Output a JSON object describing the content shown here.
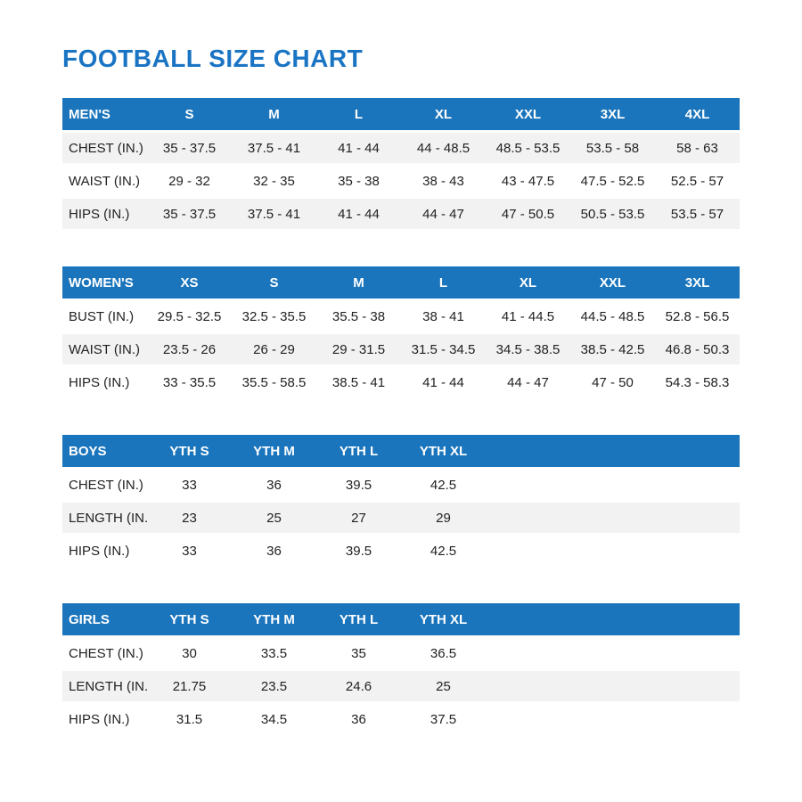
{
  "page": {
    "title": "FOOTBALL SIZE CHART"
  },
  "colors": {
    "title_blue": "#1a74c4",
    "header_blue": "#1b75bc",
    "stripe_gray": "#f2f2f3",
    "body_text": "#222222"
  },
  "tables": [
    {
      "id": "mens",
      "name": "mens-size-table",
      "header": [
        "MEN'S",
        "S",
        "M",
        "L",
        "XL",
        "XXL",
        "3XL",
        "4XL"
      ],
      "rows": [
        [
          "CHEST (IN.)",
          "35 - 37.5",
          "37.5 - 41",
          "41 - 44",
          "44 - 48.5",
          "48.5 - 53.5",
          "53.5 - 58",
          "58 - 63"
        ],
        [
          "WAIST (IN.)",
          "29 - 32",
          "32 - 35",
          "35 - 38",
          "38 - 43",
          "43 - 47.5",
          "47.5 - 52.5",
          "52.5 - 57"
        ],
        [
          "HIPS (IN.)",
          "35 - 37.5",
          "37.5 - 41",
          "41 - 44",
          "44 - 47",
          "47 - 50.5",
          "50.5 - 53.5",
          "53.5 - 57"
        ]
      ],
      "striped_rows": [
        0,
        2
      ]
    },
    {
      "id": "womens",
      "name": "womens-size-table",
      "header": [
        "WOMEN'S",
        "XS",
        "S",
        "M",
        "L",
        "XL",
        "XXL",
        "3XL"
      ],
      "rows": [
        [
          "BUST (IN.)",
          "29.5 - 32.5",
          "32.5 - 35.5",
          "35.5 - 38",
          "38 - 41",
          "41 - 44.5",
          "44.5 - 48.5",
          "52.8 - 56.5"
        ],
        [
          "WAIST (IN.)",
          "23.5 - 26",
          "26 - 29",
          "29 - 31.5",
          "31.5 - 34.5",
          "34.5 - 38.5",
          "38.5 - 42.5",
          "46.8 - 50.3"
        ],
        [
          "HIPS (IN.)",
          "33 - 35.5",
          "35.5 - 58.5",
          "38.5 - 41",
          "41 - 44",
          "44 - 47",
          "47 - 50",
          "54.3 - 58.3"
        ]
      ],
      "striped_rows": [
        1
      ]
    },
    {
      "id": "boys",
      "name": "boys-size-table",
      "header": [
        "BOYS",
        "YTH S",
        "YTH M",
        "YTH L",
        "YTH XL"
      ],
      "rows": [
        [
          "CHEST (IN.)",
          "33",
          "36",
          "39.5",
          "42.5"
        ],
        [
          "LENGTH (IN.)",
          "23",
          "25",
          "27",
          "29"
        ],
        [
          "HIPS (IN.)",
          "33",
          "36",
          "39.5",
          "42.5"
        ]
      ],
      "striped_rows": [
        1
      ]
    },
    {
      "id": "girls",
      "name": "girls-size-table",
      "header": [
        "GIRLS",
        "YTH S",
        "YTH M",
        "YTH L",
        "YTH XL"
      ],
      "rows": [
        [
          "CHEST (IN.)",
          "30",
          "33.5",
          "35",
          "36.5"
        ],
        [
          "LENGTH (IN.)",
          "21.75",
          "23.5",
          "24.6",
          "25"
        ],
        [
          "HIPS (IN.)",
          "31.5",
          "34.5",
          "36",
          "37.5"
        ]
      ],
      "striped_rows": [
        1
      ]
    }
  ]
}
